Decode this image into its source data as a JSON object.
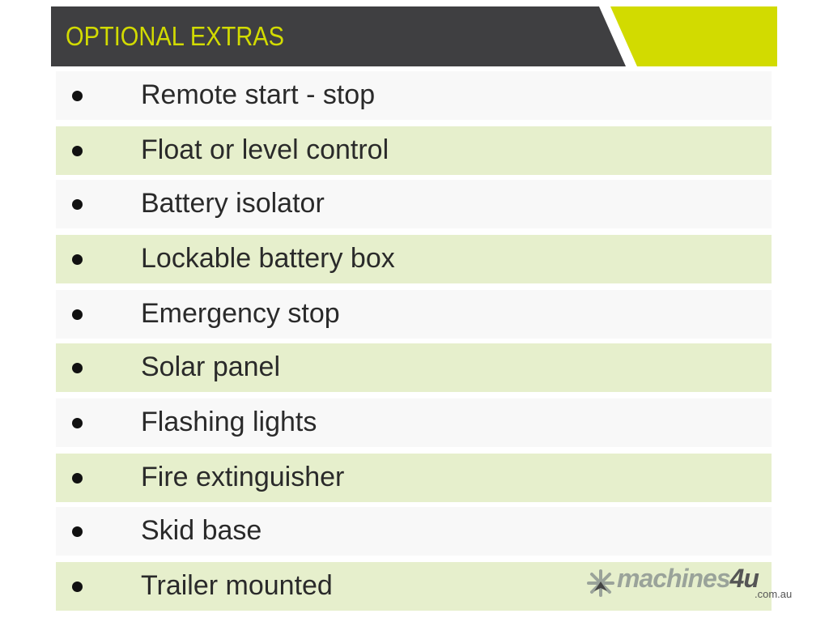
{
  "header": {
    "title": "OPTIONAL EXTRAS",
    "colors": {
      "dark": "#3f3f41",
      "accent": "#d2db00"
    }
  },
  "items": [
    {
      "label": "Remote start - stop"
    },
    {
      "label": "Float or level control"
    },
    {
      "label": "Battery isolator"
    },
    {
      "label": "Lockable battery box"
    },
    {
      "label": "Emergency stop"
    },
    {
      "label": "Solar panel"
    },
    {
      "label": "Flashing lights"
    },
    {
      "label": "Fire extinguisher"
    },
    {
      "label": "Skid base"
    },
    {
      "label": "Trailer mounted"
    }
  ],
  "watermark": {
    "name": "machines",
    "suffix": "4u",
    "domain": ".com.au",
    "icon": "snowflake-arrow-icon"
  },
  "row_colors": {
    "odd": "#f8f8f8",
    "even": "#e6efcc"
  }
}
